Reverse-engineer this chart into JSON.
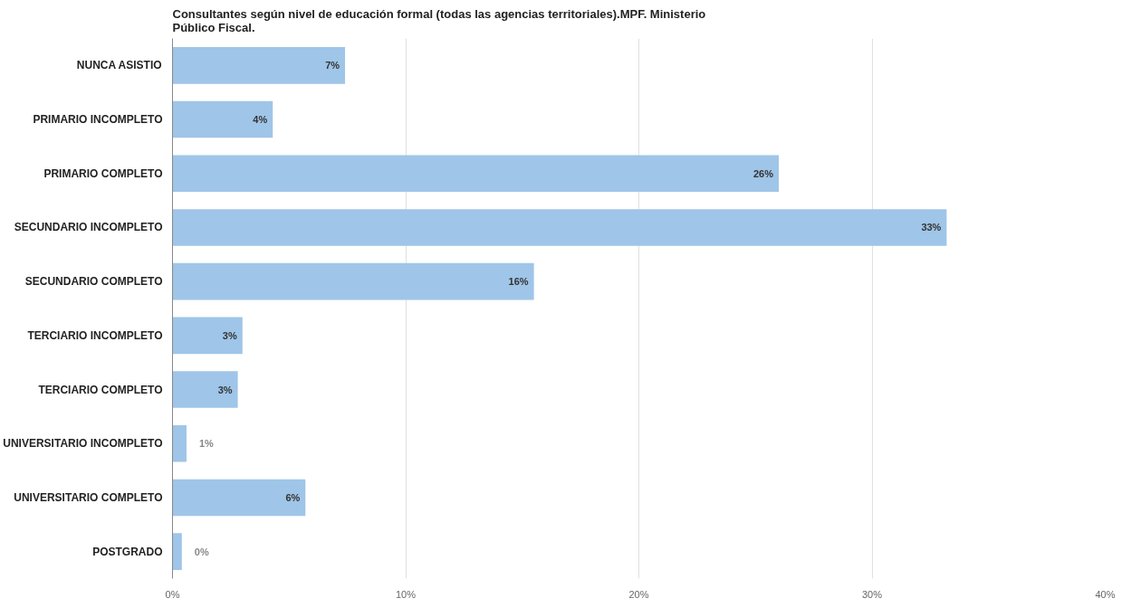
{
  "chart_data": {
    "type": "bar",
    "orientation": "horizontal",
    "title": "Consultantes según nivel de educación formal (todas las agencias territoriales).MPF. Ministerio Público Fiscal.",
    "categories": [
      "NUNCA ASISTIO",
      "PRIMARIO INCOMPLETO",
      "PRIMARIO COMPLETO",
      "SECUNDARIO INCOMPLETO",
      "SECUNDARIO COMPLETO",
      "TERCIARIO INCOMPLETO",
      "TERCIARIO COMPLETO",
      "UNIVERSITARIO INCOMPLETO",
      "UNIVERSITARIO COMPLETO",
      "POSTGRADO"
    ],
    "values": [
      7.4,
      4.3,
      26.0,
      33.2,
      15.5,
      3.0,
      2.8,
      0.6,
      5.7,
      0.4
    ],
    "value_labels": [
      "7%",
      "4%",
      "26%",
      "33%",
      "16%",
      "3%",
      "3%",
      "1%",
      "6%",
      "0%"
    ],
    "color": "#9fc5e8",
    "xlim": [
      0,
      40
    ],
    "xticks": [
      {
        "value": 0,
        "label": "0%"
      },
      {
        "value": 10,
        "label": "10%"
      },
      {
        "value": 20,
        "label": "20%"
      },
      {
        "value": 30,
        "label": "30%"
      },
      {
        "value": 40,
        "label": "40%"
      }
    ],
    "grid": "x"
  }
}
